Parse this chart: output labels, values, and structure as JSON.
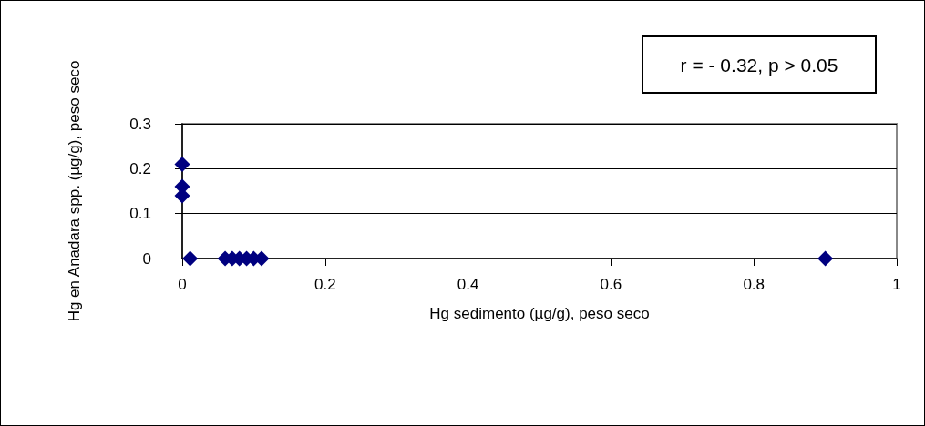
{
  "chart_data": {
    "type": "scatter",
    "xlabel": "Hg sedimento (µg/g), peso seco",
    "ylabel": "Hg en Anadara spp. (µg/g), peso seco",
    "annotations": [
      "r = - 0.32, p > 0.05"
    ],
    "series": [
      {
        "color": "#000080",
        "x": [
          0,
          0,
          0,
          0.011,
          0.06,
          0.07,
          0.08,
          0.09,
          0.1,
          0.111,
          0.9
        ],
        "values": [
          0.21,
          0.16,
          0.14,
          0,
          0,
          0,
          0,
          0,
          0,
          0,
          0
        ]
      }
    ],
    "xlim": [
      0,
      1
    ],
    "xticks": [
      0,
      0.2,
      0.4,
      0.6,
      0.8,
      1
    ],
    "ylim": [
      0,
      0.3
    ],
    "yticks": [
      0,
      0.1,
      0.2,
      0.3
    ],
    "grid": "y",
    "marker": "diamond"
  }
}
